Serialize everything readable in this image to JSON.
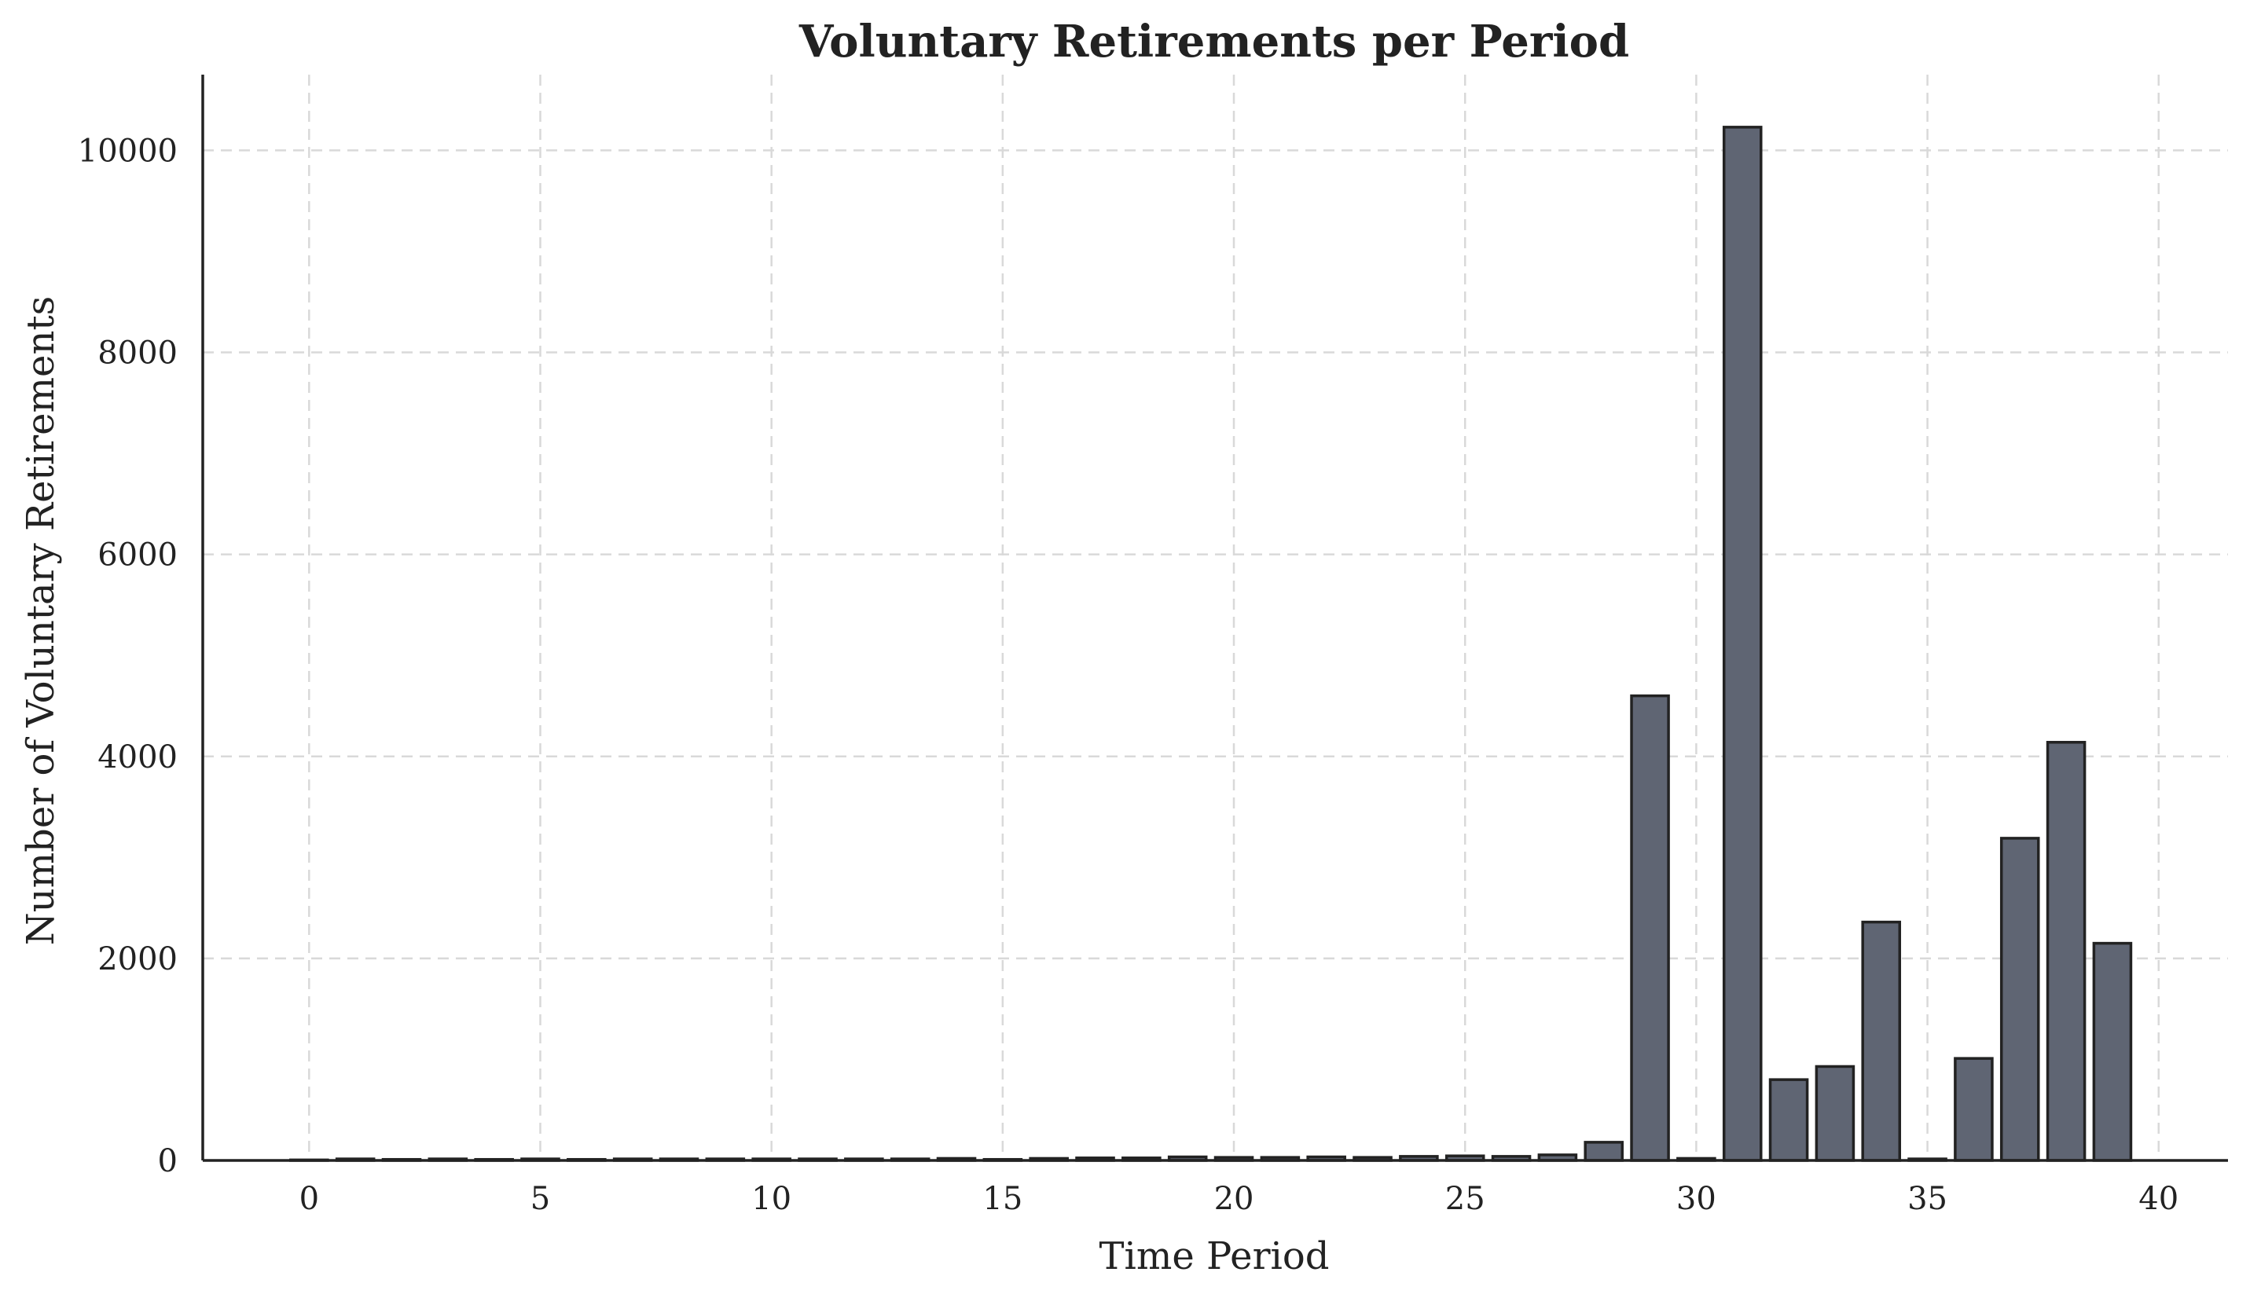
{
  "chart_data": {
    "type": "bar",
    "title": "Voluntary Retirements per Period",
    "xlabel": "Time Period",
    "ylabel": "Number of Voluntary Retirements",
    "x": [
      0,
      1,
      2,
      3,
      4,
      5,
      6,
      7,
      8,
      9,
      10,
      11,
      12,
      13,
      14,
      15,
      16,
      17,
      18,
      19,
      20,
      21,
      22,
      23,
      24,
      25,
      26,
      27,
      28,
      29,
      30,
      31,
      32,
      33,
      34,
      35,
      36,
      37,
      38,
      39
    ],
    "values": [
      5,
      15,
      10,
      15,
      10,
      15,
      10,
      15,
      15,
      15,
      15,
      15,
      15,
      15,
      20,
      10,
      20,
      25,
      25,
      35,
      30,
      30,
      35,
      30,
      40,
      45,
      40,
      55,
      180,
      4600,
      20,
      10230,
      800,
      930,
      2360,
      15,
      1010,
      3190,
      4140,
      2150
    ],
    "xlim": [
      -2.3,
      41.5
    ],
    "ylim": [
      0,
      10750
    ],
    "xticks": [
      0,
      5,
      10,
      15,
      20,
      25,
      30,
      35,
      40
    ],
    "yticks": [
      0,
      2000,
      4000,
      6000,
      8000,
      10000
    ],
    "grid": true,
    "bar_color": "#5f6573",
    "edge_color": "#222222"
  }
}
